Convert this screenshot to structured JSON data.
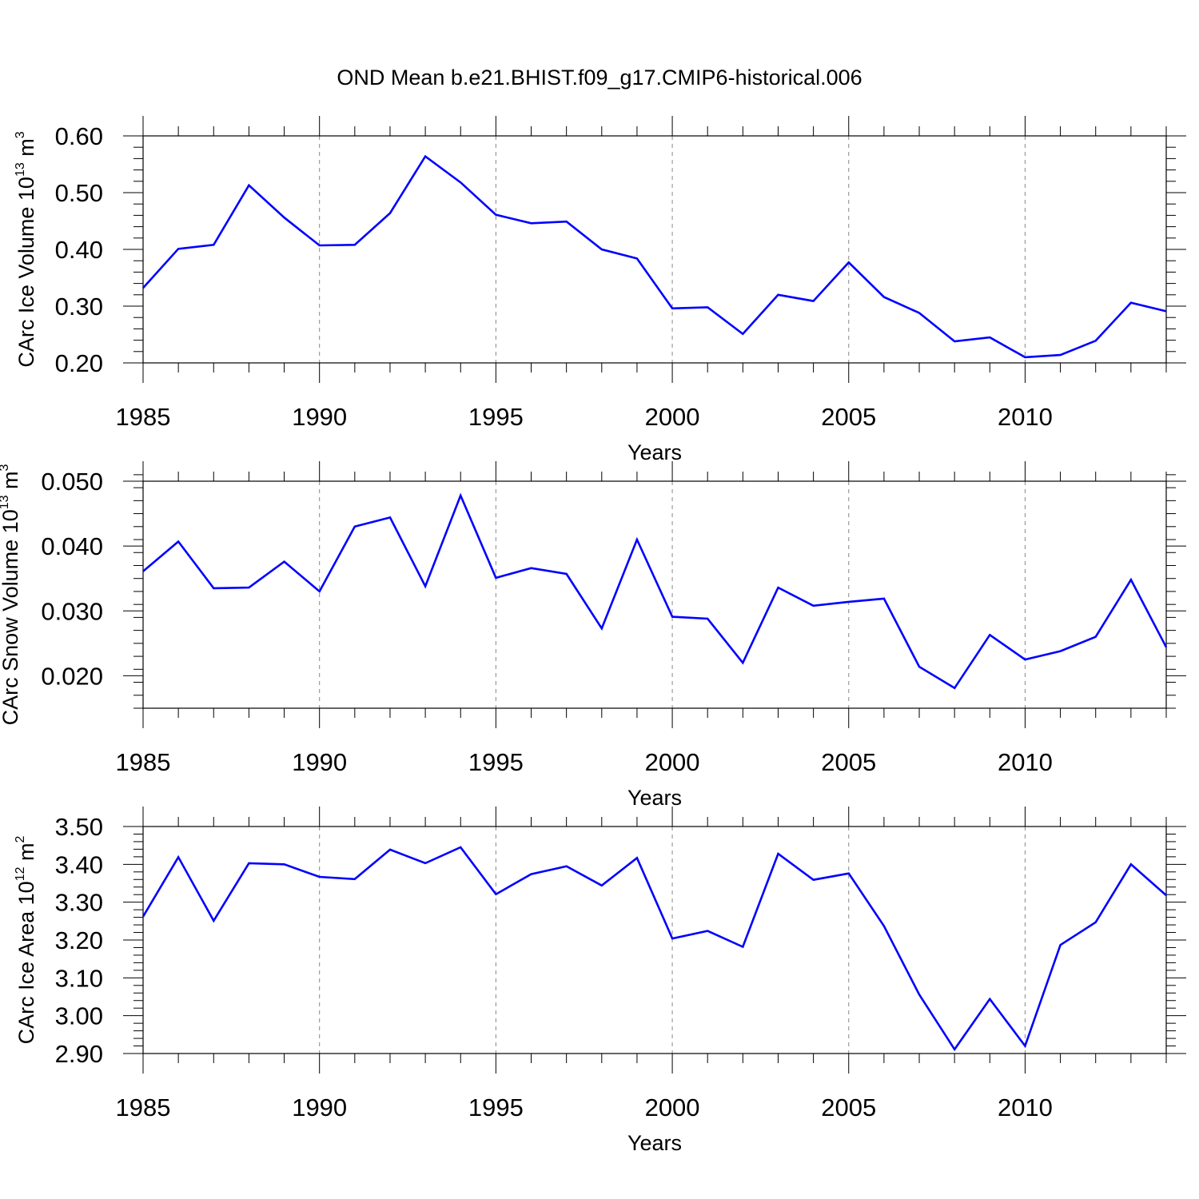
{
  "title": "OND Mean b.e21.BHIST.f09_g17.CMIP6-historical.006",
  "line_color": "#0000ff",
  "chart_data": [
    {
      "type": "line",
      "ylabel_main": "CArc Ice Volume 10",
      "ylabel_exp": "13",
      "ylabel_unit": " m",
      "ylabel_unit_exp": "3",
      "xlabel": "Years",
      "xlim": [
        1985,
        2014
      ],
      "ylim": [
        0.2,
        0.6
      ],
      "yticks": [
        0.2,
        0.3,
        0.4,
        0.5,
        0.6
      ],
      "ytick_labels": [
        "0.20",
        "0.30",
        "0.40",
        "0.50",
        "0.60"
      ],
      "yminor_step": 0.02,
      "xticks": [
        1985,
        1990,
        1995,
        2000,
        2005,
        2010
      ],
      "xtick_labels": [
        "1985",
        "1990",
        "1995",
        "2000",
        "2005",
        "2010"
      ],
      "x": [
        1985,
        1986,
        1987,
        1988,
        1989,
        1990,
        1991,
        1992,
        1993,
        1994,
        1995,
        1996,
        1997,
        1998,
        1999,
        2000,
        2001,
        2002,
        2003,
        2004,
        2005,
        2006,
        2007,
        2008,
        2009,
        2010,
        2011,
        2012,
        2013,
        2014
      ],
      "y": [
        0.332,
        0.401,
        0.408,
        0.513,
        0.456,
        0.407,
        0.408,
        0.464,
        0.564,
        0.518,
        0.461,
        0.446,
        0.449,
        0.4,
        0.384,
        0.296,
        0.298,
        0.251,
        0.32,
        0.309,
        0.377,
        0.316,
        0.288,
        0.238,
        0.245,
        0.21,
        0.214,
        0.239,
        0.306,
        0.291
      ]
    },
    {
      "type": "line",
      "ylabel_main": "CArc Snow Volume 10",
      "ylabel_exp": "13",
      "ylabel_unit": " m",
      "ylabel_unit_exp": "3",
      "xlabel": "Years",
      "xlim": [
        1985,
        2014
      ],
      "ylim": [
        0.015,
        0.05
      ],
      "yticks": [
        0.02,
        0.03,
        0.04,
        0.05
      ],
      "ytick_labels": [
        "0.020",
        "0.030",
        "0.040",
        "0.050"
      ],
      "yminor_step": 0.002,
      "xticks": [
        1985,
        1990,
        1995,
        2000,
        2005,
        2010
      ],
      "xtick_labels": [
        "1985",
        "1990",
        "1995",
        "2000",
        "2005",
        "2010"
      ],
      "x": [
        1985,
        1986,
        1987,
        1988,
        1989,
        1990,
        1991,
        1992,
        1993,
        1994,
        1995,
        1996,
        1997,
        1998,
        1999,
        2000,
        2001,
        2002,
        2003,
        2004,
        2005,
        2006,
        2007,
        2008,
        2009,
        2010,
        2011,
        2012,
        2013,
        2014
      ],
      "y": [
        0.0361,
        0.0407,
        0.0335,
        0.0336,
        0.0376,
        0.033,
        0.043,
        0.0444,
        0.0338,
        0.0478,
        0.0351,
        0.0366,
        0.0357,
        0.0273,
        0.041,
        0.0291,
        0.0288,
        0.022,
        0.0336,
        0.0308,
        0.0314,
        0.0319,
        0.0214,
        0.0181,
        0.0263,
        0.0225,
        0.0238,
        0.026,
        0.0348,
        0.0244
      ]
    },
    {
      "type": "line",
      "ylabel_main": "CArc Ice Area 10",
      "ylabel_exp": "12",
      "ylabel_unit": " m",
      "ylabel_unit_exp": "2",
      "xlabel": "Years",
      "xlim": [
        1985,
        2014
      ],
      "ylim": [
        2.9,
        3.5
      ],
      "yticks": [
        2.9,
        3.0,
        3.1,
        3.2,
        3.3,
        3.4,
        3.5
      ],
      "ytick_labels": [
        "2.90",
        "3.00",
        "3.10",
        "3.20",
        "3.30",
        "3.40",
        "3.50"
      ],
      "yminor_step": 0.02,
      "xticks": [
        1985,
        1990,
        1995,
        2000,
        2005,
        2010
      ],
      "xtick_labels": [
        "1985",
        "1990",
        "1995",
        "2000",
        "2005",
        "2010"
      ],
      "x": [
        1985,
        1986,
        1987,
        1988,
        1989,
        1990,
        1991,
        1992,
        1993,
        1994,
        1995,
        1996,
        1997,
        1998,
        1999,
        2000,
        2001,
        2002,
        2003,
        2004,
        2005,
        2006,
        2007,
        2008,
        2009,
        2010,
        2011,
        2012,
        2013,
        2014
      ],
      "y": [
        3.262,
        3.419,
        3.251,
        3.403,
        3.4,
        3.367,
        3.361,
        3.439,
        3.403,
        3.445,
        3.321,
        3.374,
        3.395,
        3.344,
        3.417,
        3.204,
        3.224,
        3.182,
        3.428,
        3.359,
        3.376,
        3.237,
        3.056,
        2.911,
        3.044,
        2.92,
        3.187,
        3.247,
        3.4,
        3.318
      ]
    }
  ]
}
